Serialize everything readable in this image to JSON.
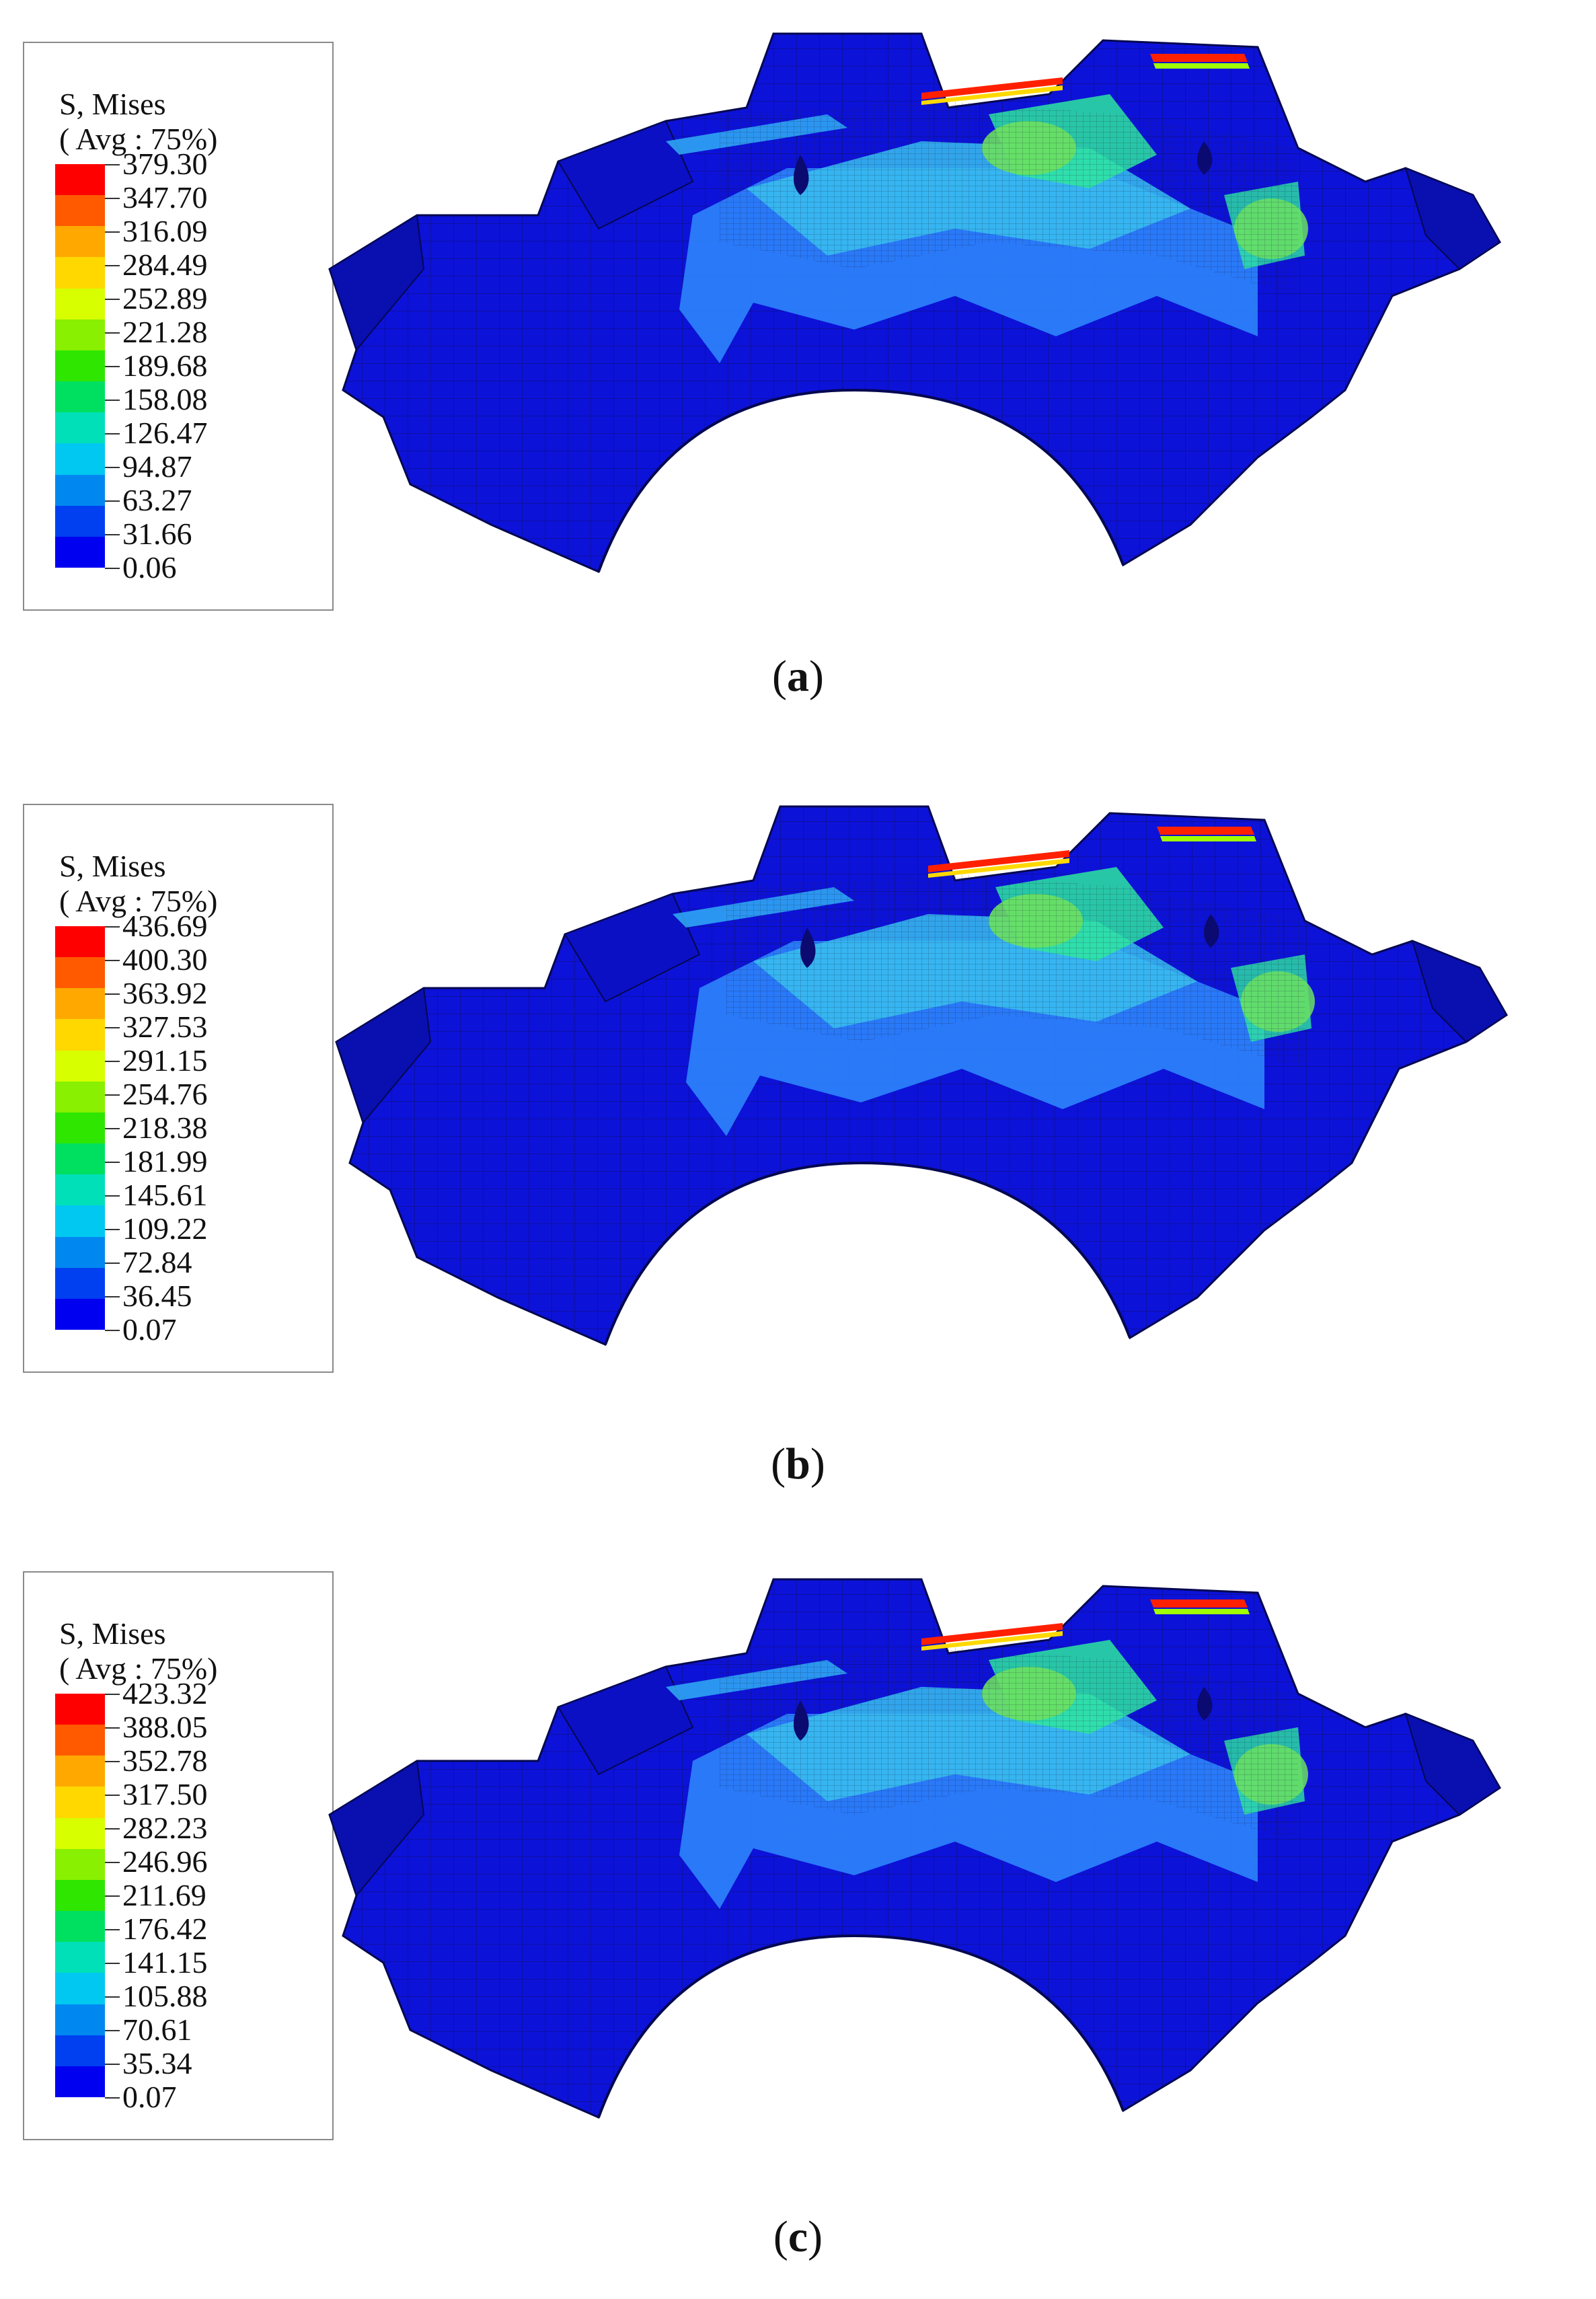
{
  "legend": {
    "title_line1": "S, Mises",
    "title_line2": "( Avg : 75%)",
    "band_colors": [
      "#ff0000",
      "#ff5a00",
      "#ffa800",
      "#ffd800",
      "#d8ff00",
      "#88f000",
      "#2ee600",
      "#00e060",
      "#00e0b8",
      "#00c8f0",
      "#0088f0",
      "#0040f0",
      "#0000f0"
    ]
  },
  "panels": [
    {
      "caption_open": "(",
      "caption_letter": "a",
      "caption_close": ")",
      "values": [
        "379.30",
        "347.70",
        "316.09",
        "284.49",
        "252.89",
        "221.28",
        "189.68",
        "158.08",
        "126.47",
        "94.87",
        "63.27",
        "31.66",
        "0.06"
      ]
    },
    {
      "caption_open": "(",
      "caption_letter": "b",
      "caption_close": ")",
      "values": [
        "436.69",
        "400.30",
        "363.92",
        "327.53",
        "291.15",
        "254.76",
        "218.38",
        "181.99",
        "145.61",
        "109.22",
        "72.84",
        "36.45",
        "0.07"
      ]
    },
    {
      "caption_open": "(",
      "caption_letter": "c",
      "caption_close": ")",
      "values": [
        "423.32",
        "388.05",
        "352.78",
        "317.50",
        "282.23",
        "246.96",
        "211.69",
        "176.42",
        "141.15",
        "105.88",
        "70.61",
        "35.34",
        "0.07"
      ]
    }
  ]
}
